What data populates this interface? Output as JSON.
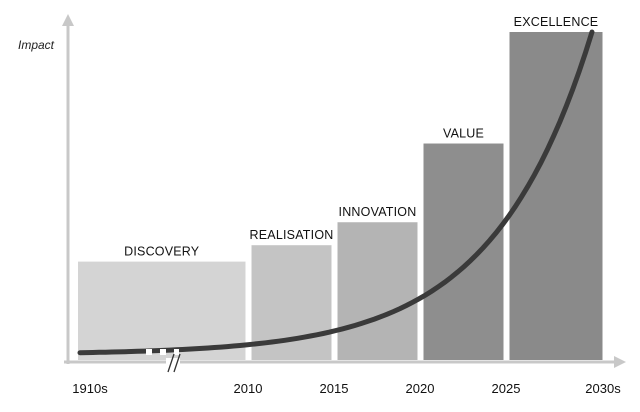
{
  "chart_data": {
    "type": "bar",
    "ylabel": "Impact",
    "xlabel": "",
    "title": "",
    "x_ticks": [
      "1910s",
      "2010",
      "2015",
      "2020",
      "2025",
      "2030s"
    ],
    "axis_break_between": [
      "1910s",
      "2010"
    ],
    "ylim": [
      0,
      100
    ],
    "grid": false,
    "legend": "none",
    "phases": [
      {
        "label": "DISCOVERY",
        "start": "1910s",
        "end": "2010",
        "value": 30,
        "color": "#d4d4d4"
      },
      {
        "label": "REALISATION",
        "start": "2010",
        "end": "2015",
        "value": 35,
        "color": "#c4c4c4"
      },
      {
        "label": "INNOVATION",
        "start": "2015",
        "end": "2020",
        "value": 42,
        "color": "#b4b4b4"
      },
      {
        "label": "VALUE",
        "start": "2020",
        "end": "2025",
        "value": 66,
        "color": "#8e8e8e"
      },
      {
        "label": "EXCELLENCE",
        "start": "2025",
        "end": "2030s",
        "value": 100,
        "color": "#8a8a8a"
      }
    ],
    "trend_curve": {
      "shape": "exponential",
      "color": "#3a3a3a",
      "start_value": 1,
      "end_value": 100
    },
    "colors": {
      "axis": "#c8c8c8",
      "text": "#111111"
    }
  }
}
